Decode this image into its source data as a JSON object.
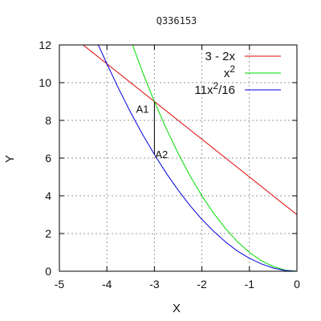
{
  "chart_data": {
    "type": "line",
    "title": "Q336153",
    "xlabel": "X",
    "ylabel": "Y",
    "xlim": [
      -5,
      0
    ],
    "ylim": [
      0,
      12
    ],
    "x_ticks": [
      "-5",
      "-4",
      "-3",
      "-2",
      "-1",
      "0"
    ],
    "y_ticks": [
      "0",
      "2",
      "4",
      "6",
      "8",
      "10",
      "12"
    ],
    "grid": true,
    "legend_position": "top-right",
    "series": [
      {
        "name": "3 - 2x",
        "color": "#e00000",
        "x": [
          -4.5,
          -4,
          -3.5,
          -3,
          -2.5,
          -2,
          -1.5,
          -1,
          -0.5,
          0
        ],
        "y": [
          12,
          11,
          10,
          9,
          8,
          7,
          6,
          5,
          4,
          3
        ]
      },
      {
        "name": "x²",
        "color": "#00dd00",
        "x": [
          -3.46,
          -3.25,
          -3,
          -2.75,
          -2.5,
          -2.25,
          -2,
          -1.75,
          -1.5,
          -1.25,
          -1,
          -0.75,
          -0.5,
          -0.25,
          0
        ],
        "y": [
          12,
          10.56,
          9,
          7.56,
          6.25,
          5.06,
          4,
          3.06,
          2.25,
          1.56,
          1,
          0.56,
          0.25,
          0.06,
          0
        ]
      },
      {
        "name": "11x²/16",
        "color": "#0000dd",
        "x": [
          -4.18,
          -4,
          -3.75,
          -3.5,
          -3.25,
          -3,
          -2.75,
          -2.5,
          -2.25,
          -2,
          -1.75,
          -1.5,
          -1.25,
          -1,
          -0.75,
          -0.5,
          -0.25,
          0
        ],
        "y": [
          12,
          11,
          9.67,
          8.42,
          7.26,
          6.19,
          5.2,
          4.3,
          3.48,
          2.75,
          2.11,
          1.55,
          1.07,
          0.69,
          0.39,
          0.17,
          0.04,
          0
        ]
      }
    ],
    "legend_labels": [
      {
        "base": "3 - 2x",
        "sup": "",
        "tail": ""
      },
      {
        "base": "x",
        "sup": "2",
        "tail": ""
      },
      {
        "base": "11x",
        "sup": "2",
        "tail": "/16"
      }
    ],
    "vertical_segment": {
      "x": -3,
      "y_from": 6.19,
      "y_to": 9
    },
    "annotations": [
      {
        "text": "A1",
        "x": -3.25,
        "y": 8.4
      },
      {
        "text": "A2",
        "x": -2.85,
        "y": 6
      }
    ]
  }
}
